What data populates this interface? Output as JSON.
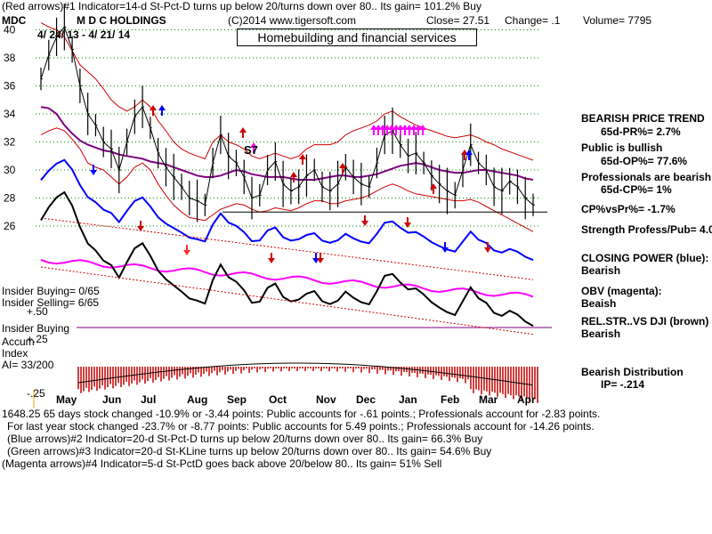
{
  "header": {
    "line1": "(Red arrows)#1 Indicator=14-d St-Pct-D turns up below 20/turns down over 80.. Its gain= 101.2% Buy",
    "ticker": "MDC",
    "company": "M D C HOLDINGS",
    "copyright": "(C)2014 www.tigersoft.com",
    "close": "Close=  27.51",
    "change": "Change= .1",
    "volume": "Volume= 7795",
    "dates": "4/ 24/ 13 - 4/ 21/ 14",
    "title": "Homebuilding and financial services"
  },
  "right_panel": {
    "trend_title": "BEARISH PRICE TREND",
    "pr": "65d-PR%= 2.7%",
    "public": "Public is bullish",
    "op": "65d-OP%= 77.6%",
    "professionals": "Professionals are bearish",
    "cp": "65d-CP%= 1%",
    "cpvspr": "CP%vsPr%= -1.7%",
    "strength": "Strength Profess/Pub= 4.0",
    "closing_power": "CLOSING POWER (blue):",
    "closing_power_val": "Bearish",
    "obv": "OBV (magenta):",
    "obv_val": "Beaish",
    "relstr": "REL.STR..VS DJI (brown)",
    "relstr_val": "Bearish",
    "distribution": "Bearish Distribution",
    "ip": "IP= -.214"
  },
  "left_panel": {
    "insider_buying_count": "Insider Buying= 0/65",
    "insider_selling_count": "Insider Selling= 6/65",
    "plus50": "+.50",
    "insider_buying": "Insider Buying",
    "accum": "Accum",
    "plus25": "+.25",
    "index": "Index",
    "ai": "AI= 33/200",
    "minus25": "-.25",
    "s7": "S7"
  },
  "footer": {
    "l1": "1648.25 65 days stock changed -10.9% or -3.44 points:  Public accounts for -.61 points.;  Professionals account for -2.83 points.",
    "l2": "For last year stock changed -23.7% or -8.77 points:  Public accounts for  5.49 points.;  Professionals account for -14.26 points.",
    "l3": "(Blue arrows)#2 Indicator=20-d St-Pct-D turns up below 20/turns down over 80.. Its gain= 66.3% Buy",
    "l4": "(Green arrows)#3 Indicator=20-d St-KLine turns up below 20/turns down over 80.. Its gain= 54.6% Buy",
    "l5": "(Magenta arrows)#4 Indicator=5-d St-PctD goes back above 20/below 80.. Its gain= 51% Sell"
  },
  "colors": {
    "price": "#000000",
    "envelope": "#d00000",
    "ma": "#800080",
    "closing_power": "#0000ff",
    "obv": "#ff00ff",
    "relstr": "#000000",
    "accum_bar": "#c00000",
    "grid": "#008000"
  },
  "chart_data": {
    "type": "line",
    "xlabel": "",
    "ylabel": "",
    "months": [
      "May",
      "Jun",
      "Jul",
      "Aug",
      "Sep",
      "Oct",
      "Nov",
      "Dec",
      "Jan",
      "Feb",
      "Mar",
      "Apr"
    ],
    "ylim": [
      25,
      41
    ],
    "yticks": [
      26,
      28,
      30,
      32,
      34,
      36,
      38,
      40
    ],
    "grid": true,
    "support_line": 27.0,
    "series": [
      {
        "values": [
          36.5,
          38.2,
          39.5,
          40.2,
          38.6,
          36.0,
          34.0,
          33.2,
          32.0,
          31.5,
          30.0,
          32.0,
          33.8,
          34.5,
          33.0,
          31.2,
          30.2,
          29.5,
          28.8,
          28.0,
          27.8,
          27.5,
          30.5,
          32.5,
          31.0,
          30.5,
          29.5,
          28.0,
          28.2,
          30.0,
          30.6,
          29.0,
          28.5,
          28.8,
          29.6,
          30.0,
          28.8,
          28.5,
          29.0,
          30.2,
          29.5,
          29.0,
          28.8,
          30.5,
          32.5,
          32.8,
          31.8,
          31.0,
          31.2,
          30.5,
          29.6,
          29.0,
          28.5,
          28.2,
          30.0,
          31.8,
          30.5,
          30.0,
          28.8,
          28.5,
          29.2,
          28.8,
          28.0,
          27.51
        ]
      },
      {
        "values": [
          34.5,
          34.4,
          34.0,
          33.2,
          32.6,
          32.1,
          31.8,
          31.6,
          31.4,
          31.3,
          31.1,
          31.0,
          30.9,
          30.8,
          30.6,
          30.5,
          30.4,
          30.2,
          30.0,
          29.8,
          29.6,
          29.5,
          29.5,
          29.6,
          29.8,
          30.0,
          29.9,
          29.7,
          29.6,
          29.5,
          29.5,
          29.5,
          29.4,
          29.3,
          29.3,
          29.3,
          29.4,
          29.5,
          29.6,
          29.6,
          29.5,
          29.5,
          29.6,
          29.7,
          29.9,
          30.1,
          30.3,
          30.4,
          30.5,
          30.4,
          30.2,
          30.0,
          29.9,
          29.8,
          29.8,
          29.9,
          30.0,
          30.0,
          29.9,
          29.8,
          29.7,
          29.6,
          29.4,
          29.3
        ]
      },
      {
        "values": [
          40.5,
          40.2,
          40.0,
          39.5,
          38.5,
          37.5,
          37.0,
          36.5,
          35.8,
          35.0,
          34.5,
          34.2,
          34.5,
          35.0,
          34.5,
          33.5,
          32.8,
          32.0,
          31.5,
          31.2,
          31.0,
          30.8,
          32.0,
          32.5,
          32.0,
          31.8,
          31.5,
          31.0,
          30.8,
          31.0,
          31.2,
          31.0,
          30.8,
          31.0,
          31.5,
          31.8,
          31.8,
          31.8,
          32.0,
          32.5,
          32.8,
          33.0,
          33.2,
          33.5,
          34.0,
          34.2,
          33.8,
          33.5,
          33.2,
          33.0,
          32.8,
          32.6,
          32.4,
          32.3,
          32.4,
          32.5,
          32.3,
          32.0,
          31.8,
          31.5,
          31.3,
          31.1,
          30.9,
          30.7
        ]
      },
      {
        "values": [
          32.5,
          32.8,
          33.0,
          32.8,
          32.2,
          31.5,
          30.5,
          30.2,
          30.0,
          29.5,
          29.0,
          29.5,
          30.2,
          30.5,
          30.0,
          29.0,
          28.2,
          27.5,
          27.0,
          26.6,
          26.5,
          26.4,
          26.8,
          27.2,
          27.4,
          27.6,
          27.5,
          27.2,
          27.0,
          27.1,
          27.3,
          27.2,
          27.1,
          27.3,
          27.6,
          27.8,
          27.8,
          27.6,
          27.6,
          27.8,
          27.9,
          28.0,
          28.2,
          28.5,
          28.8,
          29.0,
          28.8,
          28.5,
          28.3,
          28.2,
          28.1,
          28.0,
          27.9,
          27.8,
          27.8,
          27.9,
          27.7,
          27.4,
          27.1,
          26.8,
          26.5,
          26.2,
          25.9,
          25.6
        ]
      }
    ]
  }
}
